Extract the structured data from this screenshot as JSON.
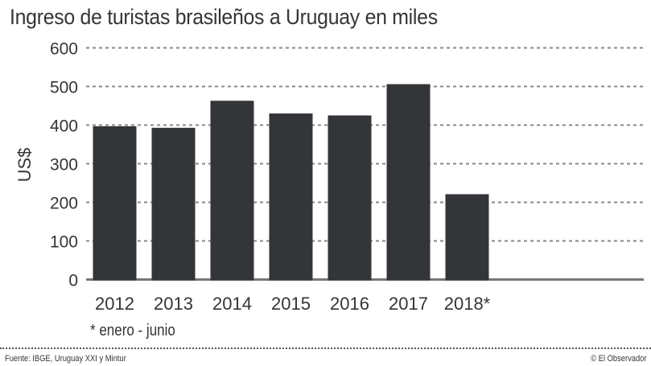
{
  "chart_data": {
    "type": "bar",
    "title": "Ingreso de turistas brasileños a Uruguay en miles",
    "categories": [
      "2012",
      "2013",
      "2014",
      "2015",
      "2016",
      "2017",
      "2018*"
    ],
    "values": [
      397,
      393,
      463,
      430,
      425,
      506,
      221
    ],
    "ylabel": "US$",
    "xlabel": "",
    "ylim": [
      0,
      600
    ],
    "yticks": [
      "0",
      "100",
      "200",
      "300",
      "400",
      "500",
      "600"
    ],
    "grid": true,
    "bar_color": "#333538",
    "note": "* enero - junio"
  },
  "footer": {
    "source": "Fuente: IBGE, Uruguay XXI y Mintur",
    "credit": "© El Observador"
  }
}
